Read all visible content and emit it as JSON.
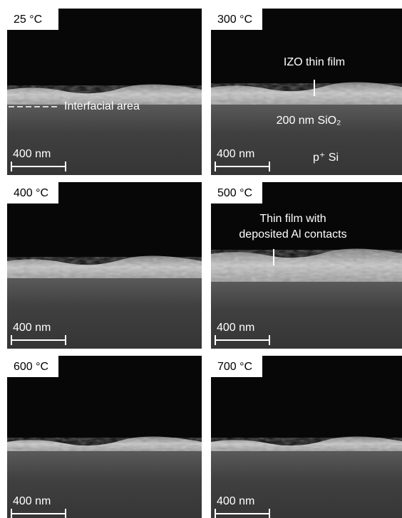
{
  "panels": [
    {
      "label": "25 °C",
      "scale_bar": "400 nm",
      "annotations": [
        {
          "lines": [
            "Interfacial area"
          ]
        }
      ]
    },
    {
      "label": "300 °C",
      "scale_bar": "400 nm",
      "annotations": [
        {
          "lines": [
            "IZO thin film"
          ]
        },
        {
          "lines": [
            "200 nm SiO₂"
          ]
        },
        {
          "lines": [
            "p⁺ Si"
          ]
        }
      ]
    },
    {
      "label": "400 °C",
      "scale_bar": "400 nm",
      "annotations": []
    },
    {
      "label": "500 °C",
      "scale_bar": "400 nm",
      "annotations": [
        {
          "lines": [
            "Thin film with",
            "deposited Al contacts"
          ]
        }
      ]
    },
    {
      "label": "600 °C",
      "scale_bar": "400 nm",
      "annotations": []
    },
    {
      "label": "700 °C",
      "scale_bar": "400 nm",
      "annotations": []
    }
  ]
}
